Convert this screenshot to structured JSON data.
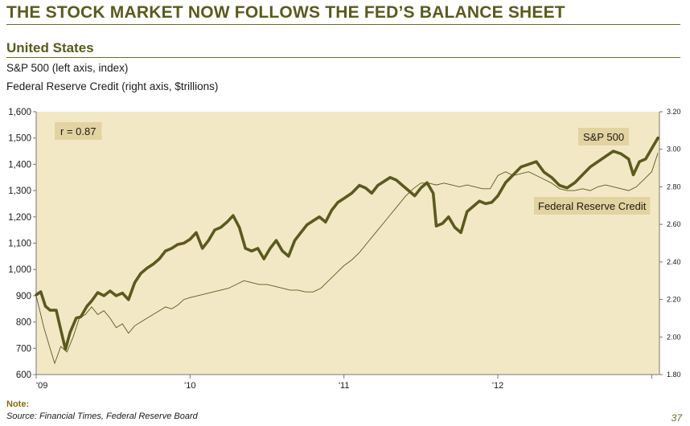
{
  "header": {
    "title": "THE STOCK MARKET NOW FOLLOWS THE FED’S BALANCE SHEET",
    "section": "United States",
    "subtitle_1": "S&P 500 (left axis, index)",
    "subtitle_2": "Federal Reserve Credit (right axis, $trillions)"
  },
  "footer": {
    "note_label": "Note:",
    "source": "Source: Financial Times, Federal Reserve Board",
    "page_number": "37"
  },
  "colors": {
    "plot_background": "#f3e8c6",
    "sp500_line": "#5a5a1e",
    "fed_line": "#5a5a1e",
    "annotation_box": "#e2d3a0"
  },
  "chart_data": {
    "type": "line",
    "x_range": [
      2009.0,
      2013.05
    ],
    "x_tick_values": [
      2009,
      2010,
      2011,
      2012,
      2013
    ],
    "x_tick_labels": [
      "'09",
      "'10",
      "'11",
      "'12",
      ""
    ],
    "y_left": {
      "range": [
        600,
        1600
      ],
      "ticks": [
        "600",
        "700",
        "800",
        "900",
        "1,000",
        "1,100",
        "1,200",
        "1,300",
        "1,400",
        "1,500",
        "1,600"
      ]
    },
    "y_right": {
      "range": [
        1.8,
        3.2
      ],
      "ticks": [
        "1.80",
        "2.00",
        "2.20",
        "2.40",
        "2.60",
        "2.80",
        "3.00",
        "3.20"
      ]
    },
    "grid": false,
    "annotations": [
      {
        "text": "r = 0.87"
      },
      {
        "text": "S&P 500"
      },
      {
        "text": "Federal Reserve Credit"
      }
    ],
    "series": [
      {
        "name": "S&P 500",
        "axis": "left",
        "points": [
          [
            2009.0,
            903
          ],
          [
            2009.03,
            915
          ],
          [
            2009.06,
            860
          ],
          [
            2009.09,
            845
          ],
          [
            2009.13,
            845
          ],
          [
            2009.16,
            770
          ],
          [
            2009.19,
            696
          ],
          [
            2009.22,
            760
          ],
          [
            2009.26,
            815
          ],
          [
            2009.29,
            820
          ],
          [
            2009.33,
            860
          ],
          [
            2009.36,
            880
          ],
          [
            2009.4,
            912
          ],
          [
            2009.44,
            900
          ],
          [
            2009.48,
            918
          ],
          [
            2009.52,
            900
          ],
          [
            2009.56,
            910
          ],
          [
            2009.6,
            885
          ],
          [
            2009.64,
            950
          ],
          [
            2009.68,
            985
          ],
          [
            2009.72,
            1005
          ],
          [
            2009.76,
            1020
          ],
          [
            2009.8,
            1040
          ],
          [
            2009.84,
            1070
          ],
          [
            2009.88,
            1080
          ],
          [
            2009.92,
            1095
          ],
          [
            2009.96,
            1100
          ],
          [
            2010.0,
            1115
          ],
          [
            2010.04,
            1140
          ],
          [
            2010.08,
            1080
          ],
          [
            2010.12,
            1110
          ],
          [
            2010.16,
            1150
          ],
          [
            2010.2,
            1160
          ],
          [
            2010.24,
            1180
          ],
          [
            2010.28,
            1205
          ],
          [
            2010.32,
            1160
          ],
          [
            2010.36,
            1080
          ],
          [
            2010.4,
            1070
          ],
          [
            2010.44,
            1080
          ],
          [
            2010.48,
            1040
          ],
          [
            2010.52,
            1080
          ],
          [
            2010.56,
            1110
          ],
          [
            2010.6,
            1070
          ],
          [
            2010.64,
            1050
          ],
          [
            2010.68,
            1110
          ],
          [
            2010.72,
            1140
          ],
          [
            2010.76,
            1170
          ],
          [
            2010.8,
            1185
          ],
          [
            2010.84,
            1200
          ],
          [
            2010.88,
            1180
          ],
          [
            2010.92,
            1225
          ],
          [
            2010.96,
            1255
          ],
          [
            2011.0,
            1270
          ],
          [
            2011.05,
            1290
          ],
          [
            2011.1,
            1320
          ],
          [
            2011.14,
            1310
          ],
          [
            2011.18,
            1290
          ],
          [
            2011.22,
            1320
          ],
          [
            2011.26,
            1335
          ],
          [
            2011.3,
            1350
          ],
          [
            2011.34,
            1340
          ],
          [
            2011.38,
            1320
          ],
          [
            2011.42,
            1300
          ],
          [
            2011.46,
            1280
          ],
          [
            2011.5,
            1310
          ],
          [
            2011.54,
            1330
          ],
          [
            2011.58,
            1290
          ],
          [
            2011.6,
            1165
          ],
          [
            2011.64,
            1175
          ],
          [
            2011.68,
            1200
          ],
          [
            2011.72,
            1160
          ],
          [
            2011.76,
            1140
          ],
          [
            2011.8,
            1220
          ],
          [
            2011.84,
            1240
          ],
          [
            2011.88,
            1260
          ],
          [
            2011.92,
            1250
          ],
          [
            2011.96,
            1255
          ],
          [
            2012.0,
            1280
          ],
          [
            2012.05,
            1330
          ],
          [
            2012.1,
            1360
          ],
          [
            2012.15,
            1390
          ],
          [
            2012.2,
            1400
          ],
          [
            2012.25,
            1410
          ],
          [
            2012.3,
            1370
          ],
          [
            2012.35,
            1350
          ],
          [
            2012.4,
            1320
          ],
          [
            2012.45,
            1310
          ],
          [
            2012.5,
            1330
          ],
          [
            2012.55,
            1360
          ],
          [
            2012.6,
            1390
          ],
          [
            2012.65,
            1410
          ],
          [
            2012.7,
            1430
          ],
          [
            2012.75,
            1450
          ],
          [
            2012.8,
            1440
          ],
          [
            2012.85,
            1420
          ],
          [
            2012.88,
            1360
          ],
          [
            2012.92,
            1410
          ],
          [
            2012.96,
            1420
          ],
          [
            2013.0,
            1460
          ],
          [
            2013.04,
            1500
          ]
        ]
      },
      {
        "name": "Federal Reserve Credit",
        "axis": "right",
        "points": [
          [
            2009.0,
            2.22
          ],
          [
            2009.05,
            2.05
          ],
          [
            2009.09,
            1.94
          ],
          [
            2009.12,
            1.86
          ],
          [
            2009.16,
            1.95
          ],
          [
            2009.2,
            1.92
          ],
          [
            2009.24,
            2.0
          ],
          [
            2009.28,
            2.1
          ],
          [
            2009.32,
            2.12
          ],
          [
            2009.36,
            2.16
          ],
          [
            2009.4,
            2.12
          ],
          [
            2009.44,
            2.14
          ],
          [
            2009.48,
            2.1
          ],
          [
            2009.52,
            2.05
          ],
          [
            2009.56,
            2.07
          ],
          [
            2009.6,
            2.02
          ],
          [
            2009.64,
            2.06
          ],
          [
            2009.68,
            2.08
          ],
          [
            2009.72,
            2.1
          ],
          [
            2009.76,
            2.12
          ],
          [
            2009.8,
            2.14
          ],
          [
            2009.84,
            2.16
          ],
          [
            2009.88,
            2.15
          ],
          [
            2009.92,
            2.17
          ],
          [
            2009.96,
            2.2
          ],
          [
            2010.0,
            2.21
          ],
          [
            2010.05,
            2.22
          ],
          [
            2010.1,
            2.23
          ],
          [
            2010.15,
            2.24
          ],
          [
            2010.2,
            2.25
          ],
          [
            2010.25,
            2.26
          ],
          [
            2010.3,
            2.28
          ],
          [
            2010.35,
            2.3
          ],
          [
            2010.4,
            2.29
          ],
          [
            2010.45,
            2.28
          ],
          [
            2010.5,
            2.28
          ],
          [
            2010.55,
            2.27
          ],
          [
            2010.6,
            2.26
          ],
          [
            2010.65,
            2.25
          ],
          [
            2010.7,
            2.25
          ],
          [
            2010.75,
            2.24
          ],
          [
            2010.8,
            2.24
          ],
          [
            2010.85,
            2.26
          ],
          [
            2010.9,
            2.3
          ],
          [
            2010.95,
            2.34
          ],
          [
            2011.0,
            2.38
          ],
          [
            2011.05,
            2.41
          ],
          [
            2011.1,
            2.45
          ],
          [
            2011.15,
            2.5
          ],
          [
            2011.2,
            2.55
          ],
          [
            2011.25,
            2.6
          ],
          [
            2011.3,
            2.65
          ],
          [
            2011.35,
            2.7
          ],
          [
            2011.4,
            2.75
          ],
          [
            2011.45,
            2.79
          ],
          [
            2011.5,
            2.82
          ],
          [
            2011.55,
            2.82
          ],
          [
            2011.6,
            2.81
          ],
          [
            2011.65,
            2.82
          ],
          [
            2011.7,
            2.81
          ],
          [
            2011.75,
            2.8
          ],
          [
            2011.8,
            2.81
          ],
          [
            2011.85,
            2.8
          ],
          [
            2011.9,
            2.79
          ],
          [
            2011.95,
            2.79
          ],
          [
            2012.0,
            2.86
          ],
          [
            2012.05,
            2.88
          ],
          [
            2012.1,
            2.86
          ],
          [
            2012.15,
            2.87
          ],
          [
            2012.2,
            2.88
          ],
          [
            2012.25,
            2.86
          ],
          [
            2012.3,
            2.84
          ],
          [
            2012.35,
            2.82
          ],
          [
            2012.4,
            2.79
          ],
          [
            2012.45,
            2.78
          ],
          [
            2012.5,
            2.78
          ],
          [
            2012.55,
            2.79
          ],
          [
            2012.6,
            2.78
          ],
          [
            2012.65,
            2.8
          ],
          [
            2012.7,
            2.81
          ],
          [
            2012.75,
            2.8
          ],
          [
            2012.8,
            2.79
          ],
          [
            2012.85,
            2.78
          ],
          [
            2012.9,
            2.8
          ],
          [
            2012.95,
            2.84
          ],
          [
            2013.0,
            2.88
          ],
          [
            2013.04,
            2.98
          ]
        ]
      }
    ]
  }
}
